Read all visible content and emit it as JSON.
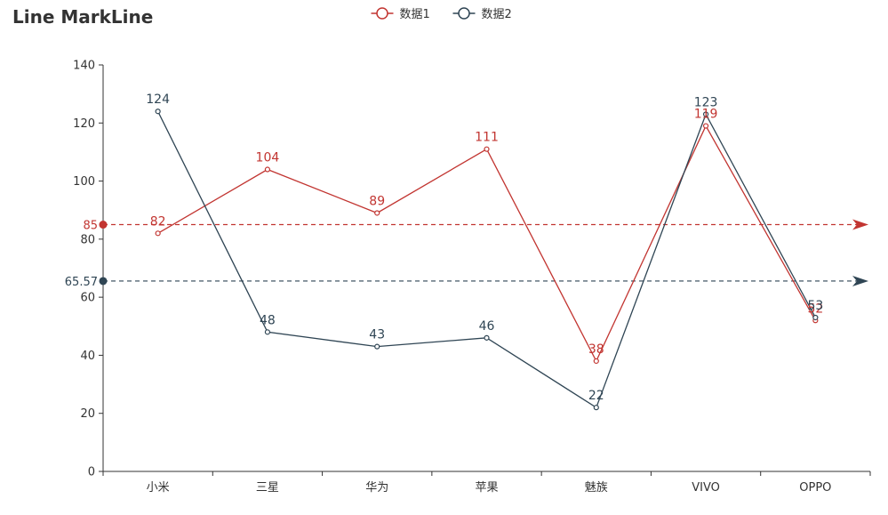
{
  "chart_data": {
    "type": "line",
    "title": "Line MarkLine",
    "categories": [
      "小米",
      "三星",
      "华为",
      "苹果",
      "魅族",
      "VIVO",
      "OPPO"
    ],
    "series": [
      {
        "name": "数据1",
        "color": "#c23531",
        "values": [
          82,
          104,
          89,
          111,
          38,
          119,
          52
        ],
        "markline": {
          "type": "average",
          "value": 85,
          "label": "85"
        }
      },
      {
        "name": "数据2",
        "color": "#2f4554",
        "values": [
          124,
          48,
          43,
          46,
          22,
          123,
          53
        ],
        "markline": {
          "type": "average",
          "value": 65.57,
          "label": "65.57"
        }
      }
    ],
    "ylim": [
      0,
      140
    ],
    "yticks": [
      0,
      20,
      40,
      60,
      80,
      100,
      120,
      140
    ],
    "xlabel": "",
    "ylabel": "",
    "grid": false,
    "legend_position": "top-center"
  }
}
